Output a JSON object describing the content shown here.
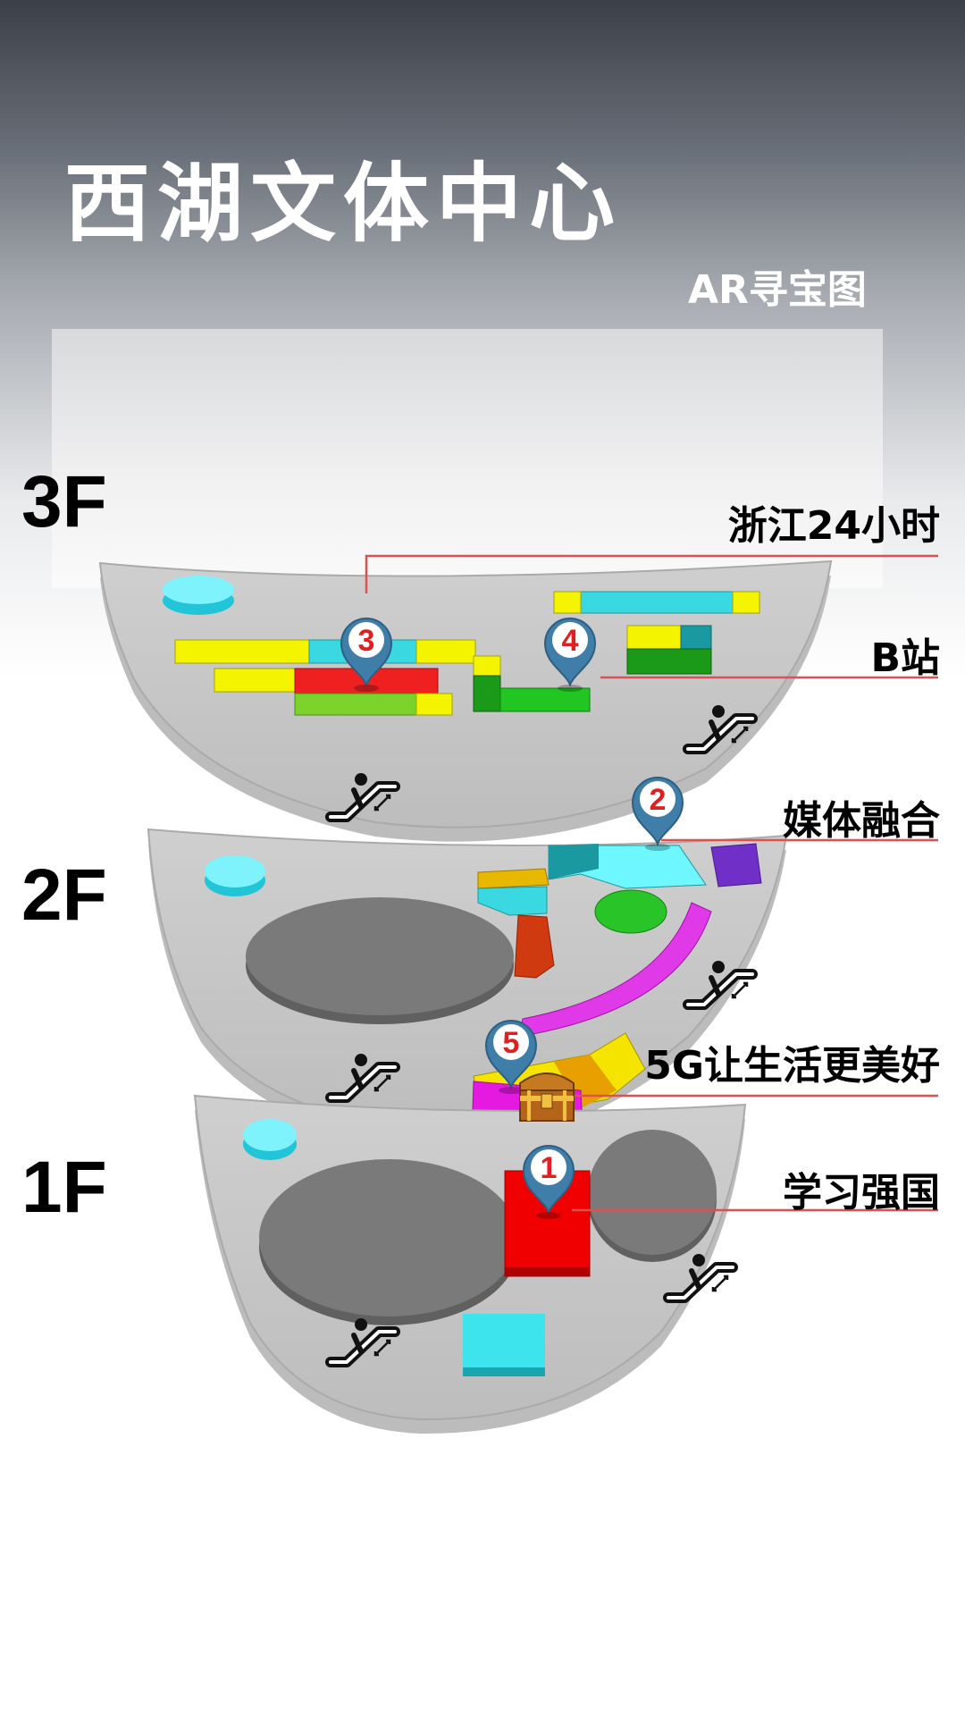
{
  "header": {
    "title": "西湖文体中心",
    "subtitle": "AR寻宝图"
  },
  "floors": [
    {
      "label": "3F"
    },
    {
      "label": "2F"
    },
    {
      "label": "1F"
    }
  ],
  "markers": [
    {
      "number": "1",
      "label": "学习强国"
    },
    {
      "number": "2",
      "label": "媒体融合"
    },
    {
      "number": "3",
      "label": "浙江24小时"
    },
    {
      "number": "4",
      "label": "B站"
    },
    {
      "number": "5",
      "label": "5G让生活更美好"
    }
  ],
  "icons": [
    "escalator-icon",
    "map-pin-icon",
    "treasure-chest-icon"
  ],
  "colors": {
    "floor": "#c9c9c9",
    "leader_line": "#e05050",
    "pin": "#3f7ea8",
    "pin_number": "#e02020"
  }
}
